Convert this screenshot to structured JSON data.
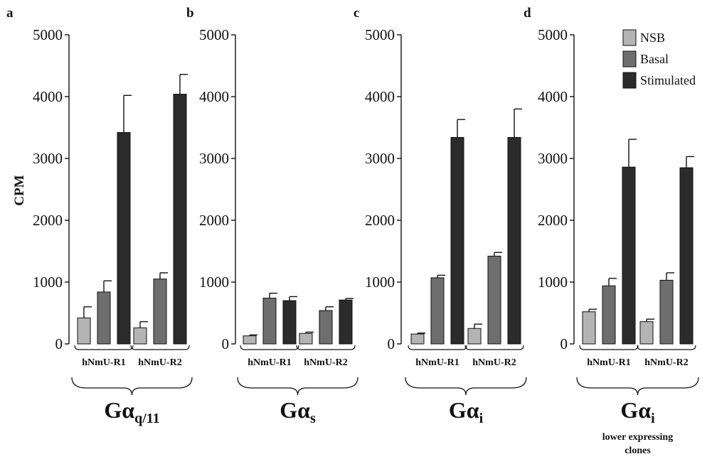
{
  "figure": {
    "ylabel": "CPM",
    "legend": {
      "position": "top-right",
      "entries": [
        {
          "label": "NSB",
          "color": "#b4b4b4"
        },
        {
          "label": "Basal",
          "color": "#6e6e6e"
        },
        {
          "label": "Stimulated",
          "color": "#2b2b2b"
        }
      ]
    },
    "colors": {
      "bar_stroke": "#111111",
      "axis": "#111111"
    }
  },
  "chart_data": [
    {
      "type": "bar",
      "panel": "a",
      "group_label": "Gα",
      "group_sub": "q/11",
      "group_note": "",
      "categories": [
        "hNmU-R1",
        "hNmU-R2"
      ],
      "ylim": [
        0,
        5000
      ],
      "yticks": [
        "0",
        "1000",
        "2000",
        "3000",
        "4000",
        "5000"
      ],
      "series": [
        {
          "name": "NSB",
          "values": [
            420,
            260
          ],
          "errors": [
            180,
            100
          ]
        },
        {
          "name": "Basal",
          "values": [
            840,
            1050
          ],
          "errors": [
            180,
            100
          ]
        },
        {
          "name": "Stimulated",
          "values": [
            3420,
            4040
          ],
          "errors": [
            600,
            320
          ]
        }
      ]
    },
    {
      "type": "bar",
      "panel": "b",
      "group_label": "Gα",
      "group_sub": "s",
      "group_note": "",
      "categories": [
        "hNmU-R1",
        "hNmU-R2"
      ],
      "ylim": [
        0,
        5000
      ],
      "yticks": [
        "0",
        "1000",
        "2000",
        "3000",
        "4000",
        "5000"
      ],
      "series": [
        {
          "name": "NSB",
          "values": [
            130,
            170
          ],
          "errors": [
            15,
            20
          ]
        },
        {
          "name": "Basal",
          "values": [
            740,
            540
          ],
          "errors": [
            80,
            60
          ]
        },
        {
          "name": "Stimulated",
          "values": [
            700,
            710
          ],
          "errors": [
            65,
            25
          ]
        }
      ]
    },
    {
      "type": "bar",
      "panel": "c",
      "group_label": "Gα",
      "group_sub": "i",
      "group_note": "",
      "categories": [
        "hNmU-R1",
        "hNmU-R2"
      ],
      "ylim": [
        0,
        5000
      ],
      "yticks": [
        "0",
        "1000",
        "2000",
        "3000",
        "4000",
        "5000"
      ],
      "series": [
        {
          "name": "NSB",
          "values": [
            160,
            250
          ],
          "errors": [
            15,
            70
          ]
        },
        {
          "name": "Basal",
          "values": [
            1070,
            1420
          ],
          "errors": [
            40,
            60
          ]
        },
        {
          "name": "Stimulated",
          "values": [
            3340,
            3340
          ],
          "errors": [
            290,
            460
          ]
        }
      ]
    },
    {
      "type": "bar",
      "panel": "d",
      "group_label": "Gα",
      "group_sub": "i",
      "group_note": "lower expressing clones",
      "categories": [
        "hNmU-R1",
        "hNmU-R2"
      ],
      "ylim": [
        0,
        5000
      ],
      "yticks": [
        "0",
        "1000",
        "2000",
        "3000",
        "4000",
        "5000"
      ],
      "series": [
        {
          "name": "NSB",
          "values": [
            520,
            360
          ],
          "errors": [
            40,
            40
          ]
        },
        {
          "name": "Basal",
          "values": [
            940,
            1030
          ],
          "errors": [
            120,
            120
          ]
        },
        {
          "name": "Stimulated",
          "values": [
            2860,
            2850
          ],
          "errors": [
            450,
            180
          ]
        }
      ]
    }
  ]
}
